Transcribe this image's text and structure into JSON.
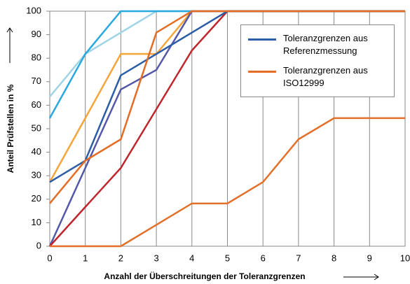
{
  "chart_data": {
    "type": "line",
    "x": [
      0,
      1,
      2,
      3,
      4,
      5,
      6,
      7,
      8,
      9,
      10
    ],
    "xlabel": "Anzahl der Überschreitungen der Toleranzgrenzen",
    "ylabel": "Anteil Prüfstellen in %",
    "xlim": [
      0,
      10
    ],
    "xticks": [
      0,
      1,
      2,
      3,
      4,
      5,
      6,
      7,
      8,
      9,
      10
    ],
    "ylim": [
      0,
      100
    ],
    "yticks": [
      0,
      10,
      20,
      30,
      40,
      50,
      60,
      70,
      80,
      90,
      100
    ],
    "grid": "x",
    "legend": "upper right",
    "series": [
      {
        "color": "#9fd3e6",
        "values": [
          63.6,
          81.8,
          90.9,
          100,
          100,
          100,
          100,
          100,
          100,
          100,
          100
        ]
      },
      {
        "color": "#2aa8e0",
        "values": [
          54.5,
          81.8,
          100,
          100,
          100,
          100,
          100,
          100,
          100,
          100,
          100
        ]
      },
      {
        "color": "#f6a53a",
        "values": [
          27.3,
          54.5,
          81.8,
          81.8,
          100,
          100,
          100,
          100,
          100,
          100,
          100
        ]
      },
      {
        "color": "#5458a8",
        "values": [
          0,
          33.3,
          66.7,
          75,
          100,
          100,
          100,
          100,
          100,
          100,
          100
        ]
      },
      {
        "color": "#c0272d",
        "values": [
          0,
          16.7,
          33.3,
          58.3,
          83.3,
          100,
          100,
          100,
          100,
          100,
          100
        ]
      },
      {
        "color": "#e2702a",
        "values": [
          0,
          0,
          0,
          9.1,
          18.2,
          18.2,
          27.3,
          45.5,
          54.5,
          54.5,
          54.5
        ]
      },
      {
        "name": "Toleranzgrenzen aus Referenzmessung",
        "color": "#2b5ea7",
        "values": [
          27.3,
          36.4,
          72.7,
          81.8,
          90.9,
          100,
          100,
          100,
          100,
          100,
          100
        ]
      },
      {
        "name": "Toleranzgrenzen aus ISO12999",
        "color": "#e46c25",
        "values": [
          18.2,
          36.4,
          45.5,
          90.9,
          100,
          100,
          100,
          100,
          100,
          100,
          100
        ]
      }
    ]
  }
}
